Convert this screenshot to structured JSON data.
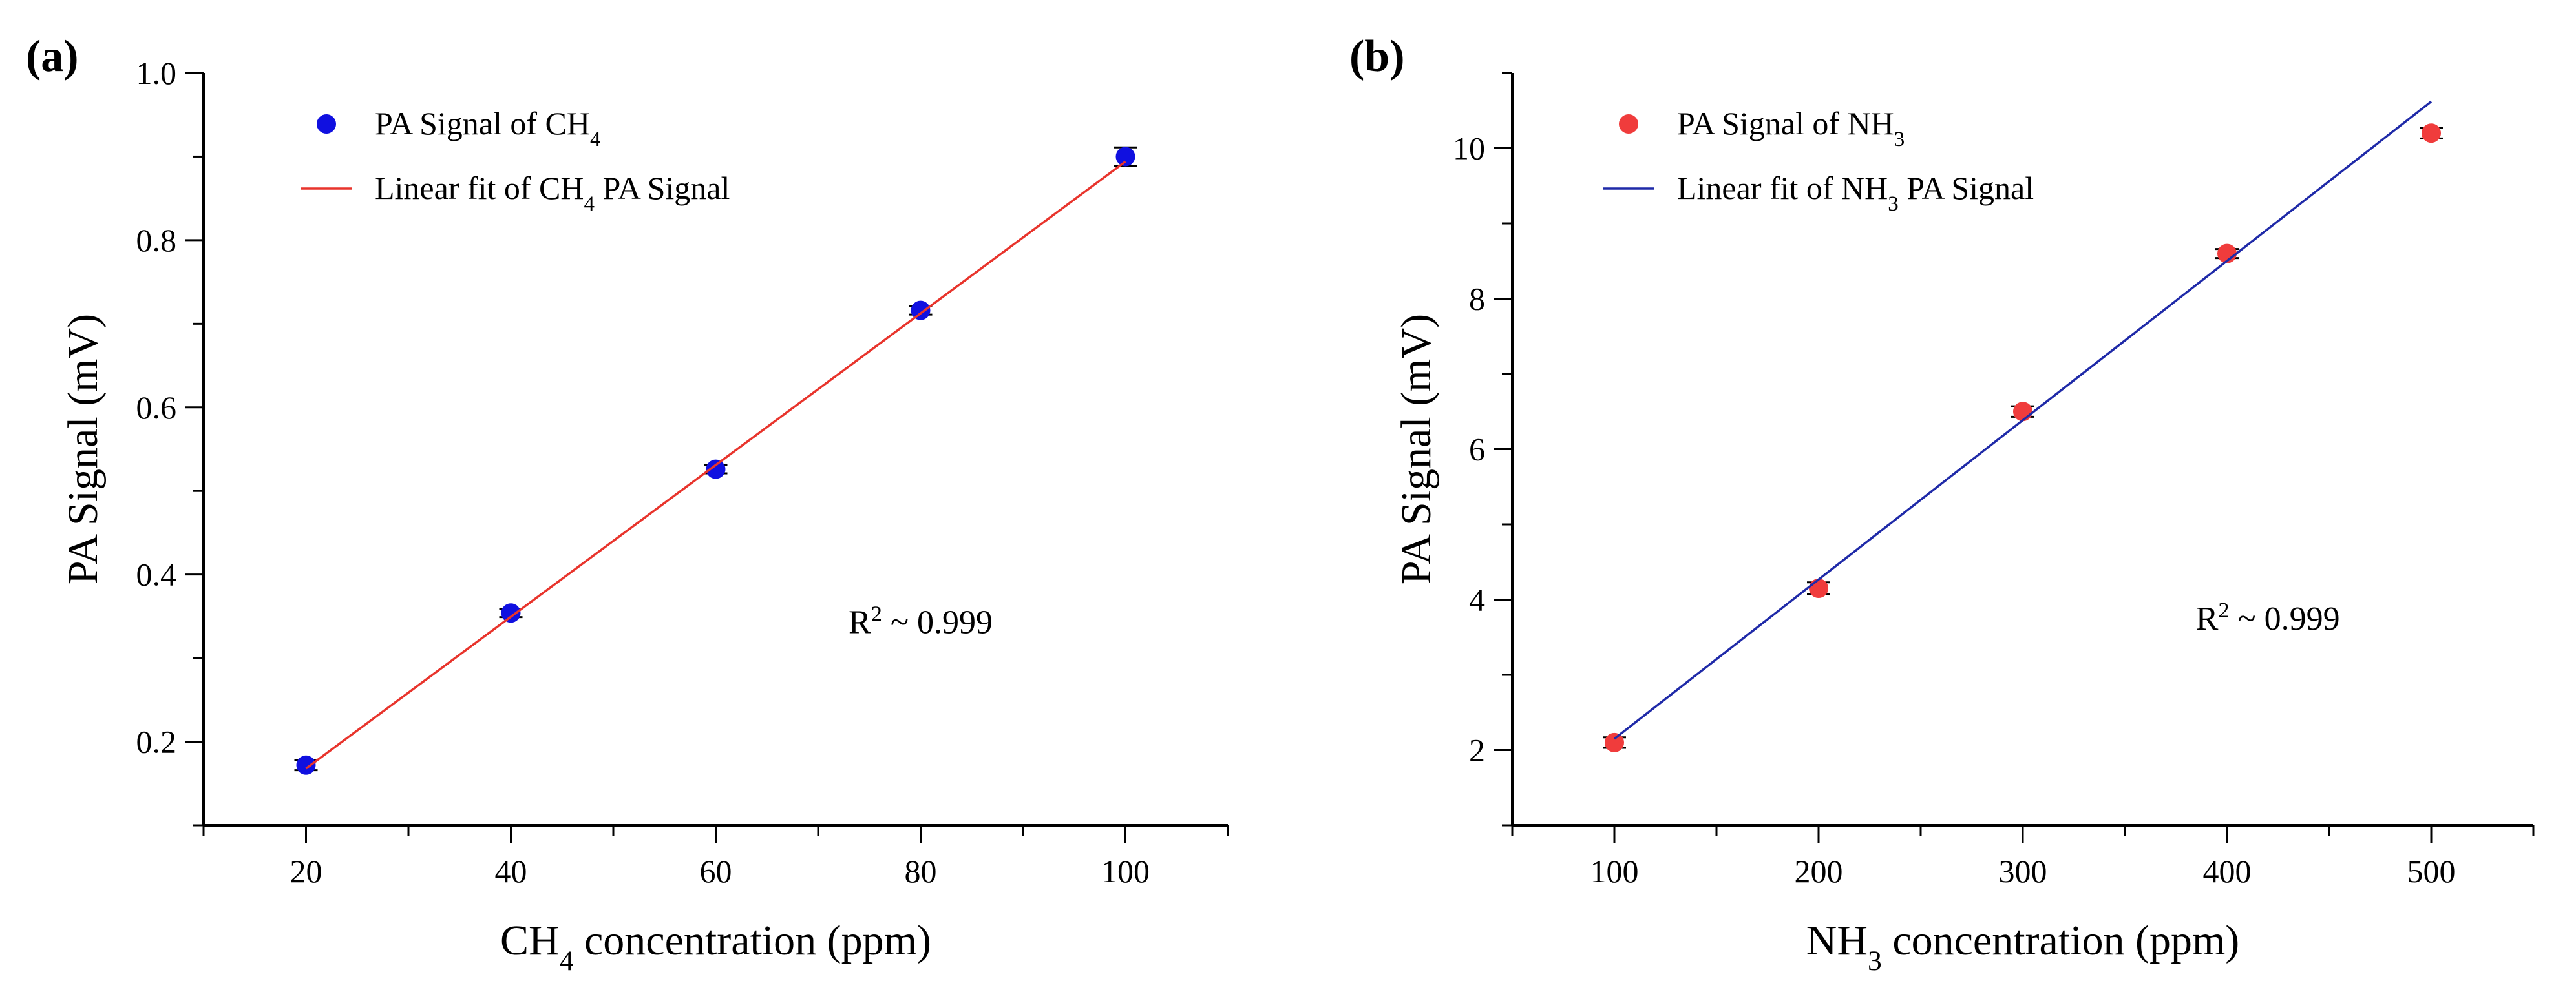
{
  "chart_data": [
    {
      "type": "scatter",
      "panel_label": "(a)",
      "xlabel": {
        "pre": "CH",
        "sub": "4",
        "post": " concentration (ppm)"
      },
      "ylabel": "PA Signal (mV)",
      "xlim": [
        10,
        110
      ],
      "ylim": [
        0.1,
        1.0
      ],
      "xticks": [
        20,
        40,
        60,
        80,
        100
      ],
      "yticks": [
        0.2,
        0.4,
        0.6,
        0.8,
        1.0
      ],
      "ytick_labels": [
        "0.2",
        "0.4",
        "0.6",
        "0.8",
        "1.0"
      ],
      "series": [
        {
          "name": "PA Signal of CH4",
          "legend": {
            "pre": "PA Signal of CH",
            "sub": "4",
            "post": ""
          },
          "kind": "points",
          "color": "#1010e0",
          "x": [
            20,
            40,
            60,
            80,
            100
          ],
          "y": [
            0.172,
            0.354,
            0.526,
            0.716,
            0.9
          ],
          "yerr": [
            0.006,
            0.005,
            0.005,
            0.005,
            0.011
          ]
        },
        {
          "name": "Linear fit of CH4 PA Signal",
          "legend": {
            "pre": "Linear fit of CH",
            "sub": "4",
            "post": " PA Signal"
          },
          "kind": "line",
          "color": "#e8342c",
          "x": [
            20,
            100
          ],
          "y": [
            0.168,
            0.894
          ]
        }
      ],
      "annotation": {
        "pre": "R",
        "sup": "2",
        "post": " ~ 0.999",
        "x": 80,
        "y": 0.33
      },
      "legend_position": "top-left"
    },
    {
      "type": "scatter",
      "panel_label": "(b)",
      "xlabel": {
        "pre": "NH",
        "sub": "3",
        "post": " concentration (ppm)"
      },
      "ylabel": "PA Signal (mV)",
      "xlim": [
        50,
        550
      ],
      "ylim": [
        1.0,
        11.0
      ],
      "xticks": [
        100,
        200,
        300,
        400,
        500
      ],
      "yticks": [
        2,
        4,
        6,
        8,
        10
      ],
      "ytick_labels": [
        "2",
        "4",
        "6",
        "8",
        "10"
      ],
      "series": [
        {
          "name": "PA Signal of NH3",
          "legend": {
            "pre": "PA Signal of NH",
            "sub": "3",
            "post": ""
          },
          "kind": "points",
          "color": "#f03c3c",
          "x": [
            100,
            200,
            300,
            400,
            500
          ],
          "y": [
            2.1,
            4.15,
            6.5,
            8.6,
            10.2
          ],
          "yerr": [
            0.07,
            0.08,
            0.07,
            0.06,
            0.07
          ]
        },
        {
          "name": "Linear fit of NH3 PA Signal",
          "legend": {
            "pre": "Linear fit of NH",
            "sub": "3",
            "post": " PA Signal"
          },
          "kind": "line",
          "color": "#1f2aa8",
          "x": [
            100,
            500
          ],
          "y": [
            2.15,
            10.62
          ]
        }
      ],
      "annotation": {
        "pre": "R",
        "sup": "2",
        "post": " ~ 0.999",
        "x": 420,
        "y": 3.6
      },
      "legend_position": "top-left"
    }
  ]
}
